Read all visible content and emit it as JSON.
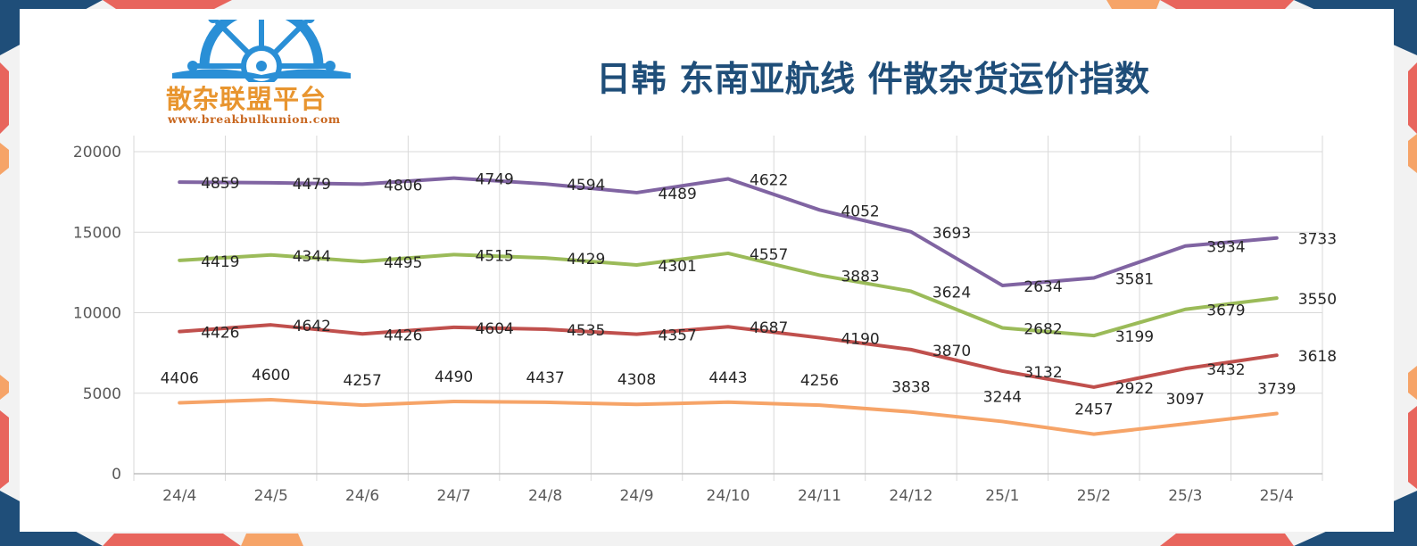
{
  "title": "日韩 东南亚航线 件散杂货运价指数",
  "logo": {
    "name": "散杂联盟平台",
    "url": "www.breakbulkunion.com",
    "icon": "ships-wheel-icon"
  },
  "colors": {
    "title": "#1f4e79",
    "navy_corner": "#1f4e79",
    "red_corner": "#e8655d",
    "orange_corner": "#f6a468",
    "logo_blue": "#2a8fd6",
    "logo_orange": "#e8952f"
  },
  "chart_data": {
    "type": "line",
    "stacked": true,
    "title": "日韩 东南亚航线 件散杂货运价指数",
    "categories": [
      "24/4",
      "24/5",
      "24/6",
      "24/7",
      "24/8",
      "24/9",
      "24/10",
      "24/11",
      "24/12",
      "25/1",
      "25/2",
      "25/3",
      "25/4"
    ],
    "ylim": [
      0,
      20000
    ],
    "yticks": [
      0,
      5000,
      10000,
      15000,
      20000
    ],
    "grid": true,
    "legend": "none",
    "series": [
      {
        "color": "#f6a468",
        "values": [
          4406,
          4600,
          4257,
          4490,
          4437,
          4308,
          4443,
          4256,
          3838,
          3244,
          2457,
          3097,
          3739
        ]
      },
      {
        "color": "#c0504d",
        "values": [
          4426,
          4642,
          4426,
          4604,
          4535,
          4357,
          4687,
          4190,
          3870,
          3132,
          2922,
          3432,
          3618
        ]
      },
      {
        "color": "#9bbb59",
        "values": [
          4419,
          4344,
          4495,
          4515,
          4429,
          4301,
          4557,
          3883,
          3624,
          2682,
          3199,
          3679,
          3550
        ]
      },
      {
        "color": "#8064a2",
        "values": [
          4859,
          4479,
          4806,
          4749,
          4594,
          4489,
          4622,
          4052,
          3693,
          2634,
          3581,
          3934,
          3733
        ]
      }
    ]
  }
}
